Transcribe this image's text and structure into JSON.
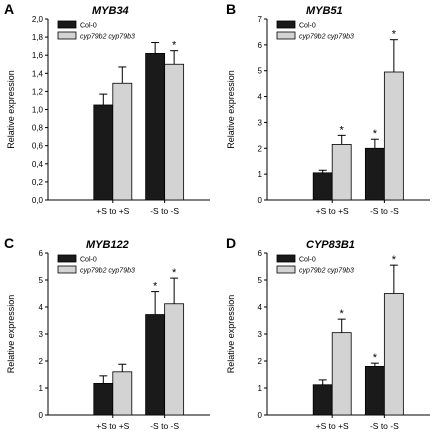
{
  "chart_data": [
    {
      "type": "bar",
      "panel_letter": "A",
      "title": "MYB34",
      "ylabel": "Relative expression",
      "categories": [
        "+S to +S",
        "-S to -S"
      ],
      "ylim": [
        0,
        2.0
      ],
      "yticks": [
        "0,0",
        "0,2",
        "0,4",
        "0,6",
        "0,8",
        "1,0",
        "1,2",
        "1,4",
        "1,6",
        "1,8",
        "2,0"
      ],
      "series": [
        {
          "name": "Col-0",
          "values": [
            1.05,
            1.62
          ],
          "errors": [
            0.12,
            0.12
          ],
          "stars": [
            false,
            false
          ]
        },
        {
          "name": "cyp79b2 cyp79b3",
          "values": [
            1.29,
            1.5
          ],
          "errors": [
            0.18,
            0.15
          ],
          "stars": [
            false,
            true
          ]
        }
      ],
      "legend_position": "top-left"
    },
    {
      "type": "bar",
      "panel_letter": "B",
      "title": "MYB51",
      "ylabel": "Relative expression",
      "categories": [
        "+S to +S",
        "-S to -S"
      ],
      "ylim": [
        0,
        7
      ],
      "yticks": [
        "0",
        "1",
        "2",
        "3",
        "4",
        "5",
        "6",
        "7"
      ],
      "series": [
        {
          "name": "Col-0",
          "values": [
            1.05,
            2.0
          ],
          "errors": [
            0.1,
            0.35
          ],
          "stars": [
            false,
            true
          ]
        },
        {
          "name": "cyp79b2 cyp79b3",
          "values": [
            2.15,
            4.95
          ],
          "errors": [
            0.35,
            1.25
          ],
          "stars": [
            true,
            true
          ]
        }
      ],
      "legend_position": "top-left"
    },
    {
      "type": "bar",
      "panel_letter": "C",
      "title": "MYB122",
      "ylabel": "Relative expression",
      "categories": [
        "+S to +S",
        "-S to -S"
      ],
      "ylim": [
        0,
        6
      ],
      "yticks": [
        "0",
        "1",
        "2",
        "3",
        "4",
        "5",
        "6"
      ],
      "series": [
        {
          "name": "Col-0",
          "values": [
            1.17,
            3.72
          ],
          "errors": [
            0.28,
            0.85
          ],
          "stars": [
            false,
            true
          ]
        },
        {
          "name": "cyp79b2 cyp79b3",
          "values": [
            1.6,
            4.12
          ],
          "errors": [
            0.28,
            0.95
          ],
          "stars": [
            false,
            true
          ]
        }
      ],
      "legend_position": "top-left"
    },
    {
      "type": "bar",
      "panel_letter": "D",
      "title": "CYP83B1",
      "ylabel": "Relative expression",
      "categories": [
        "+S to +S",
        "-S to -S"
      ],
      "ylim": [
        0,
        6
      ],
      "yticks": [
        "0",
        "1",
        "2",
        "3",
        "4",
        "5",
        "6"
      ],
      "series": [
        {
          "name": "Col-0",
          "values": [
            1.12,
            1.8
          ],
          "errors": [
            0.18,
            0.12
          ],
          "stars": [
            false,
            true
          ]
        },
        {
          "name": "cyp79b2 cyp79b3",
          "values": [
            3.05,
            4.5
          ],
          "errors": [
            0.5,
            1.05
          ],
          "stars": [
            true,
            true
          ]
        }
      ],
      "legend_position": "top-left"
    }
  ],
  "colors": {
    "col0": "#1a1a1a",
    "mutant": "#d3d3d3",
    "axis": "#000000"
  }
}
